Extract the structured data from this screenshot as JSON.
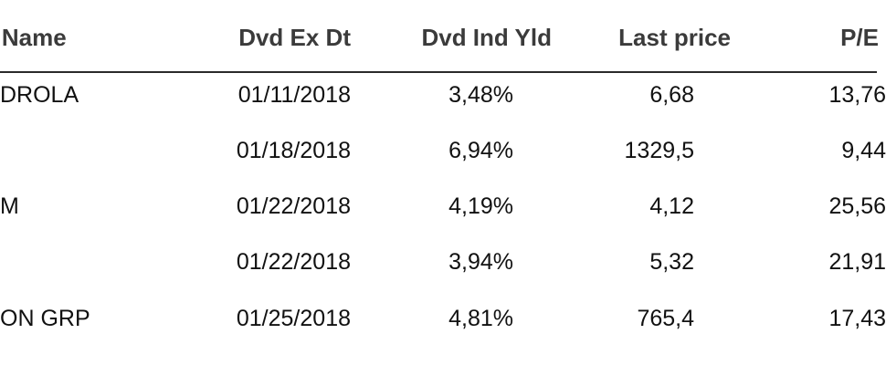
{
  "table": {
    "headers": {
      "name": "t Name",
      "ex_date": "Dvd Ex Dt",
      "yield": "Dvd Ind Yld",
      "price": "Last price",
      "pe": "P/E"
    },
    "rows": [
      {
        "name": "DROLA",
        "ex_date": "01/11/2018",
        "yield": "3,48%",
        "price": "6,68",
        "pe": "13,76"
      },
      {
        "name": "",
        "ex_date": "01/18/2018",
        "yield": "6,94%",
        "price": "1329,5",
        "pe": "9,44"
      },
      {
        "name": "M",
        "ex_date": "01/22/2018",
        "yield": "4,19%",
        "price": "4,12",
        "pe": "25,56"
      },
      {
        "name": "",
        "ex_date": "01/22/2018",
        "yield": "3,94%",
        "price": "5,32",
        "pe": "21,91"
      },
      {
        "name": "ON GRP",
        "ex_date": "01/25/2018",
        "yield": "4,81%",
        "price": "765,4",
        "pe": "17,43"
      }
    ]
  }
}
